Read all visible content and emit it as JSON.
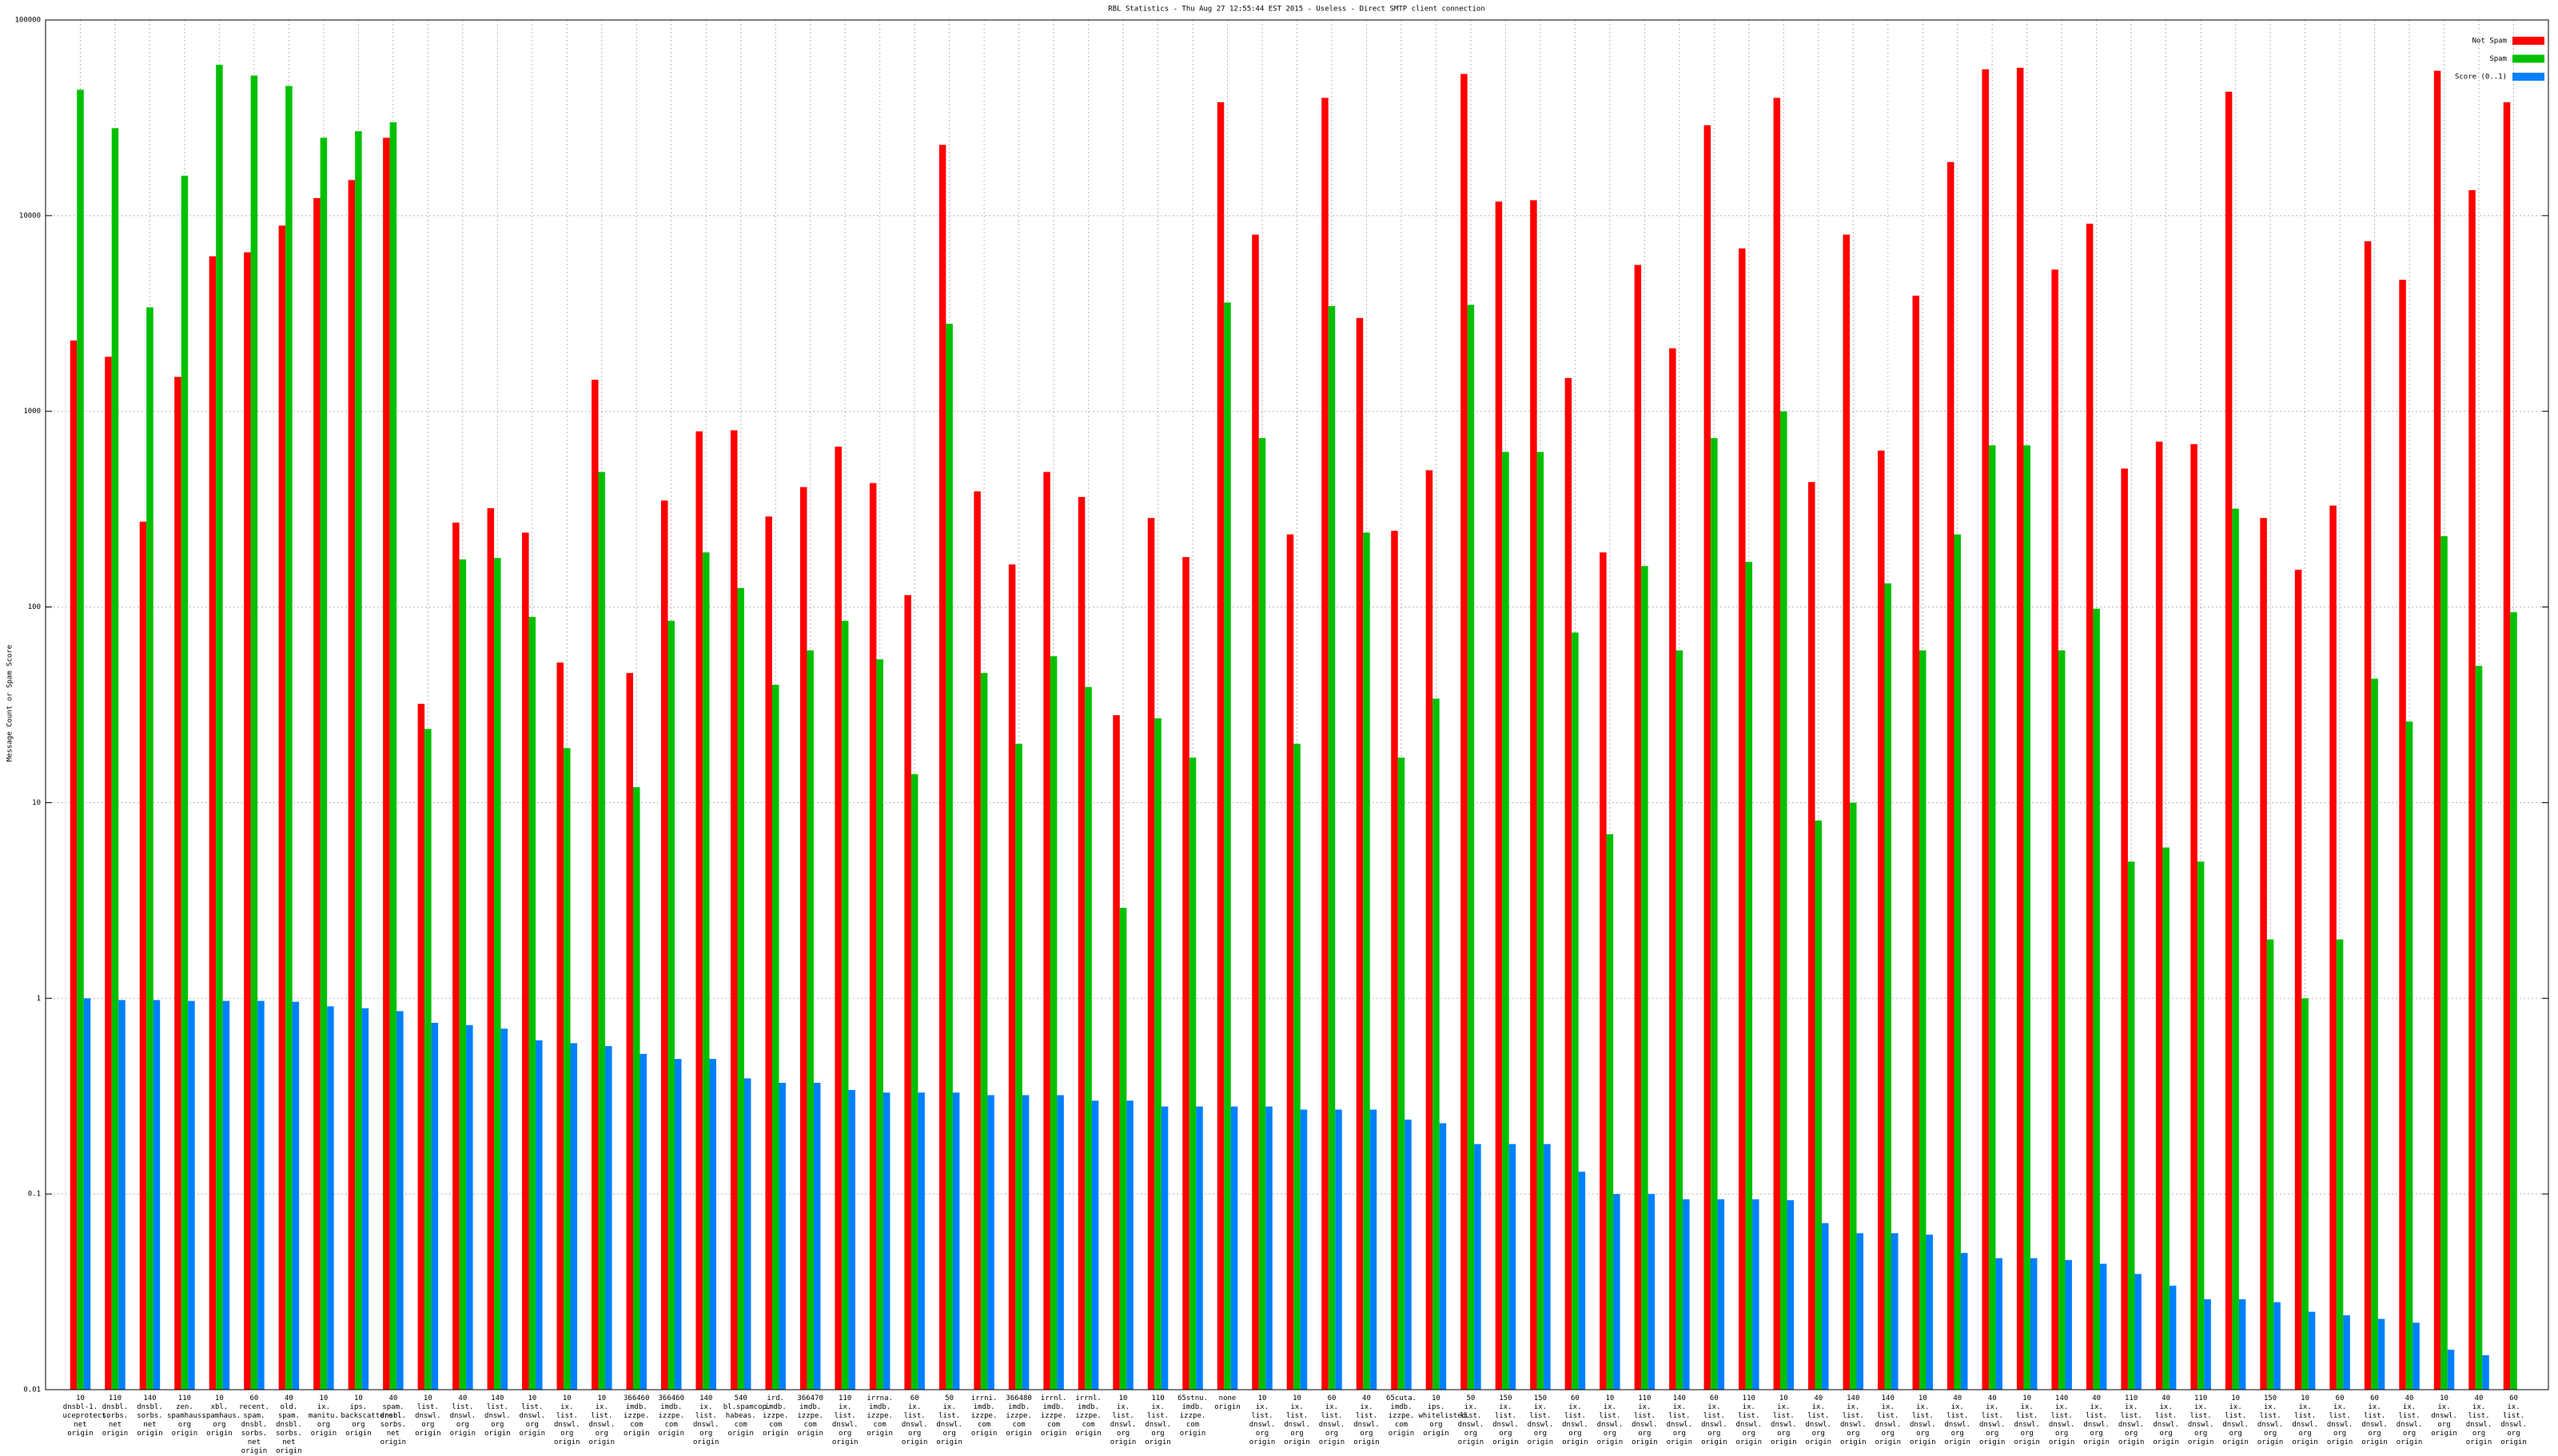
{
  "chart_data": {
    "type": "bar",
    "log_scale": true,
    "grid": true,
    "legend": "top-right",
    "title": "RBL Statistics - Thu Aug 27 12:55:44 EST 2015 - Useless - Direct SMTP client connection",
    "y_label": "Message Count or Spam Score",
    "ylim": [
      0.01,
      100000
    ],
    "yticks": [
      0.01,
      0.1,
      1,
      10,
      100,
      1000,
      10000,
      100000
    ],
    "categories": [
      "10\ndnsbl-1.\nuceprotect.\nnet\norigin",
      "110\ndnsbl.\nsorbs.\nnet\norigin",
      "140\ndnsbl.\nsorbs.\nnet\norigin",
      "110\nzen.\nspamhaus.\norg\norigin",
      "10\nxbl.\nspamhaus.\norg\norigin",
      "60\nrecent.\nspam.\ndnsbl.\nsorbs.\nnet\norigin",
      "40\nold.\nspam.\ndnsbl.\nsorbs.\nnet\norigin",
      "10\nix.\nmanitu.\norg\norigin",
      "10\nips.\nbackscatterer.\norg\norigin",
      "40\nspam.\ndnsbl.\nsorbs.\nnet\norigin",
      "10\nlist.\ndnswl.\norg\norigin",
      "40\nlist.\ndnswl.\norg\norigin",
      "140\nlist.\ndnswl.\norg\norigin",
      "10\nlist.\ndnswl.\norg\norigin",
      "10\nix.\nlist.\ndnswl.\norg\norigin",
      "10\nix.\nlist.\ndnswl.\norg\norigin",
      "366460\nimdb.\nizzpe.\ncom\norigin",
      "366460\nimdb.\nizzpe.\ncom\norigin",
      "140\nix.\nlist.\ndnswl.\norg\norigin",
      "540\nbl.spamcop.\nhabeas.\ncom\norigin",
      "ird.\nimdb.\nizzpe.\ncom\norigin",
      "366470\nimdb.\nizzpe.\ncom\norigin",
      "110\nix.\nlist.\ndnswl.\norg\norigin",
      "irrna.\nimdb.\nizzpe.\ncom\norigin",
      "60\nix.\nlist.\ndnswl.\norg\norigin",
      "50\nix.\nlist.\ndnswl.\norg\norigin",
      "irrni.\nimdb.\nizzpe.\ncom\norigin",
      "366480\nimdb.\nizzpe.\ncom\norigin",
      "irrnl.\nimdb.\nizzpe.\ncom\norigin",
      "irrnl.\nimdb.\nizzpe.\ncom\norigin",
      "10\nix.\nlist.\ndnswl.\norg\norigin",
      "110\nix.\nlist.\ndnswl.\norg\norigin",
      "65stnu.\nimdb.\nizzpe.\ncom\norigin",
      "none\norigin",
      "10\nix.\nlist.\ndnswl.\norg\norigin",
      "10\nix.\nlist.\ndnswl.\norg\norigin",
      "60\nix.\nlist.\ndnswl.\norg\norigin",
      "40\nix.\nlist.\ndnswl.\norg\norigin",
      "65cuta.\nimdb.\nizzpe.\ncom\norigin",
      "10\nips.\nwhitelisted.\norg\norigin",
      "50\nix.\nlist.\ndnswl.\norg\norigin",
      "150\nix.\nlist.\ndnswl.\norg\norigin",
      "150\nix.\nlist.\ndnswl.\norg\norigin",
      "60\nix.\nlist.\ndnswl.\norg\norigin",
      "10\nix.\nlist.\ndnswl.\norg\norigin",
      "110\nix.\nlist.\ndnswl.\norg\norigin",
      "140\nix.\nlist.\ndnswl.\norg\norigin",
      "60\nix.\nlist.\ndnswl.\norg\norigin",
      "110\nix.\nlist.\ndnswl.\norg\norigin",
      "10\nix.\nlist.\ndnswl.\norg\norigin",
      "40\nix.\nlist.\ndnswl.\norg\norigin",
      "140\nix.\nlist.\ndnswl.\norg\norigin",
      "140\nix.\nlist.\ndnswl.\norg\norigin",
      "10\nix.\nlist.\ndnswl.\norg\norigin",
      "40\nix.\nlist.\ndnswl.\norg\norigin",
      "40\nix.\nlist.\ndnswl.\norg\norigin",
      "10\nix.\nlist.\ndnswl.\norg\norigin",
      "140\nix.\nlist.\ndnswl.\norg\norigin",
      "40\nix.\nlist.\ndnswl.\norg\norigin",
      "110\nix.\nlist.\ndnswl.\norg\norigin",
      "40\nix.\nlist.\ndnswl.\norg\norigin",
      "110\nix.\nlist.\ndnswl.\norg\norigin",
      "10\nix.\nlist.\ndnswl.\norg\norigin",
      "150\nix.\nlist.\ndnswl.\norg\norigin",
      "10\nix.\nlist.\ndnswl.\norg\norigin",
      "60\nix.\nlist.\ndnswl.\norg\norigin",
      "60\nix.\nlist.\ndnswl.\norg\norigin",
      "40\nix.\nlist.\ndnswl.\norg\norigin",
      "10\nix.\ndnswl.\norg\norigin",
      "40\nix.\nlist.\ndnswl.\norg\norigin",
      "60\nix.\nlist.\ndnswl.\norg\norigin"
    ],
    "series": [
      {
        "name": "Not Spam",
        "color": "#ff0000",
        "values": [
          2300,
          1900,
          273,
          1500,
          6200,
          6500,
          8900,
          12300,
          15200,
          25000,
          32,
          270,
          320,
          240,
          52,
          1450,
          46,
          350,
          790,
          800,
          290,
          410,
          660,
          430,
          115,
          23000,
          390,
          165,
          490,
          365,
          28,
          285,
          180,
          38000,
          8000,
          235,
          40000,
          3000,
          245,
          500,
          53000,
          11800,
          12000,
          1480,
          190,
          5600,
          2100,
          29000,
          6800,
          40000,
          435,
          8000,
          630,
          3900,
          18800,
          56000,
          57000,
          5300,
          9100,
          510,
          700,
          680,
          43000,
          285,
          155,
          330,
          7400,
          4700,
          55000,
          13500,
          38000
        ]
      },
      {
        "name": "Spam",
        "color": "#00c000",
        "values": [
          44000,
          28000,
          3400,
          16000,
          59000,
          52000,
          46000,
          25000,
          27000,
          30000,
          23.8,
          175,
          178,
          89,
          19,
          490,
          12,
          85,
          190,
          125,
          40,
          60,
          85,
          54,
          14,
          2800,
          46,
          20,
          56,
          39,
          2.9,
          27,
          17,
          3600,
          730,
          20,
          3450,
          240,
          17,
          34,
          3500,
          620,
          620,
          74,
          6.9,
          162,
          60,
          730,
          170,
          1000,
          8.1,
          10,
          132,
          60,
          235,
          670,
          670,
          60,
          98,
          5,
          5.9,
          5,
          318,
          2,
          1,
          2,
          43,
          26,
          230,
          50,
          94
        ]
      },
      {
        "name": "Score (0..1)",
        "color": "#0080ff",
        "values": [
          1,
          0.98,
          0.98,
          0.97,
          0.97,
          0.97,
          0.96,
          0.91,
          0.89,
          0.86,
          0.75,
          0.73,
          0.7,
          0.61,
          0.59,
          0.57,
          0.52,
          0.49,
          0.49,
          0.39,
          0.37,
          0.37,
          0.34,
          0.33,
          0.33,
          0.33,
          0.32,
          0.32,
          0.32,
          0.3,
          0.3,
          0.28,
          0.28,
          0.28,
          0.28,
          0.27,
          0.27,
          0.27,
          0.24,
          0.23,
          0.18,
          0.18,
          0.18,
          0.13,
          0.1,
          0.1,
          0.094,
          0.094,
          0.094,
          0.093,
          0.071,
          0.063,
          0.063,
          0.062,
          0.05,
          0.047,
          0.047,
          0.046,
          0.044,
          0.039,
          0.034,
          0.029,
          0.029,
          0.028,
          0.025,
          0.024,
          0.023,
          0.022,
          0.016,
          0.015,
          null
        ]
      }
    ]
  }
}
